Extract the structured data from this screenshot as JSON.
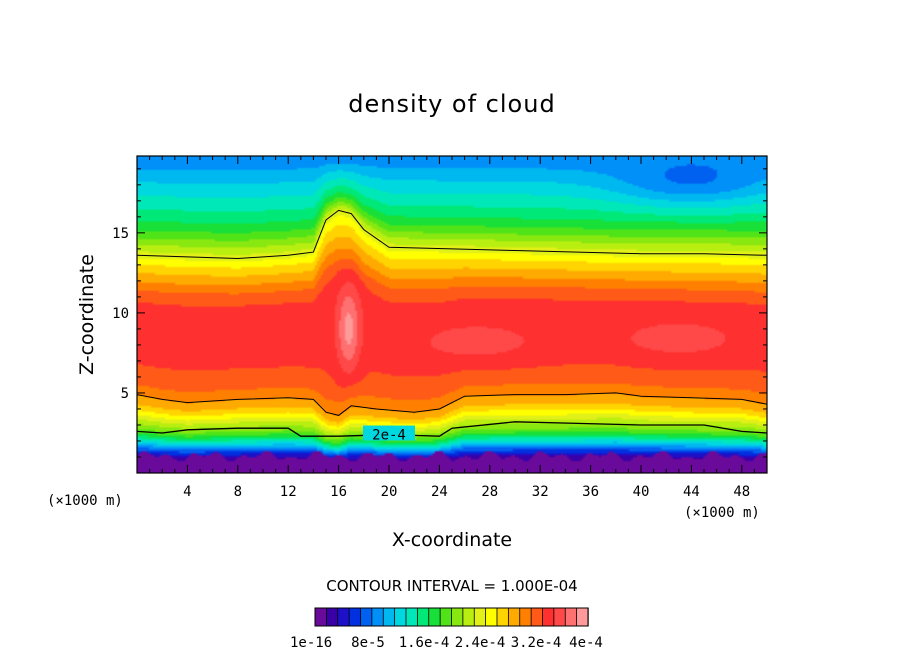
{
  "chart_data": {
    "type": "heatmap",
    "title": "density of cloud",
    "xlabel": "X-coordinate",
    "ylabel": "Z-coordinate",
    "x_unit_left": "(×1000 m)",
    "x_unit_right": "(×1000 m)",
    "xlim": [
      0,
      50
    ],
    "ylim": [
      0,
      19.8
    ],
    "x_ticks": [
      4,
      8,
      12,
      16,
      20,
      24,
      28,
      32,
      36,
      40,
      44,
      48
    ],
    "x_tick_labels": [
      "4",
      "8",
      "12",
      "16",
      "20",
      "24",
      "28",
      "32",
      "36",
      "40",
      "44",
      "48"
    ],
    "y_ticks": [
      5,
      10,
      15
    ],
    "y_tick_labels": [
      "5",
      "10",
      "15"
    ],
    "contour_interval_text": "CONTOUR INTERVAL = 1.000E-04",
    "contour_label": "2e-4",
    "contour_level": 0.0002,
    "colorbar": {
      "min": 1e-16,
      "max": 0.0004,
      "labels": [
        "1e-16",
        "8e-5",
        "1.6e-4",
        "2.4e-4",
        "3.2e-4",
        "4e-4"
      ],
      "colors": [
        "#6a0a9a",
        "#3a00a8",
        "#1e10c8",
        "#0030e0",
        "#0060f0",
        "#0090f8",
        "#00b8f0",
        "#00d8e0",
        "#00e8b8",
        "#00e878",
        "#18e038",
        "#50e418",
        "#88e810",
        "#b8ee10",
        "#e0f018",
        "#ffff00",
        "#ffd400",
        "#ffaa00",
        "#ff8000",
        "#ff5a18",
        "#ff3030",
        "#ff4848",
        "#ff7070",
        "#ff9a9a"
      ]
    },
    "z_profile": [
      {
        "z": 0.0,
        "value": 0.0
      },
      {
        "z": 0.5,
        "value": 1e-05
      },
      {
        "z": 1.0,
        "value": 3e-05
      },
      {
        "z": 1.5,
        "value": 8e-05
      },
      {
        "z": 2.0,
        "value": 0.00014
      },
      {
        "z": 2.5,
        "value": 0.00019
      },
      {
        "z": 3.0,
        "value": 0.00022
      },
      {
        "z": 3.5,
        "value": 0.00025
      },
      {
        "z": 4.0,
        "value": 0.00028
      },
      {
        "z": 5.0,
        "value": 0.00031
      },
      {
        "z": 6.0,
        "value": 0.00033
      },
      {
        "z": 8.0,
        "value": 0.00034
      },
      {
        "z": 10.0,
        "value": 0.00034
      },
      {
        "z": 11.0,
        "value": 0.00033
      },
      {
        "z": 12.0,
        "value": 0.0003
      },
      {
        "z": 13.0,
        "value": 0.00027
      },
      {
        "z": 14.0,
        "value": 0.00023
      },
      {
        "z": 15.0,
        "value": 0.00019
      },
      {
        "z": 16.0,
        "value": 0.00016
      },
      {
        "z": 17.0,
        "value": 0.00014
      },
      {
        "z": 18.0,
        "value": 0.00012
      },
      {
        "z": 19.0,
        "value": 0.0001
      },
      {
        "z": 19.8,
        "value": 9e-05
      }
    ],
    "contour_upper": [
      [
        0,
        13.6
      ],
      [
        4,
        13.5
      ],
      [
        8,
        13.4
      ],
      [
        12,
        13.6
      ],
      [
        14,
        13.8
      ],
      [
        15,
        15.8
      ],
      [
        16,
        16.4
      ],
      [
        17,
        16.2
      ],
      [
        18,
        15.2
      ],
      [
        20,
        14.1
      ],
      [
        25,
        14.0
      ],
      [
        30,
        13.9
      ],
      [
        35,
        13.8
      ],
      [
        40,
        13.7
      ],
      [
        45,
        13.7
      ],
      [
        50,
        13.6
      ]
    ],
    "contour_lower": [
      [
        0,
        4.9
      ],
      [
        2,
        4.6
      ],
      [
        4,
        4.4
      ],
      [
        6,
        4.5
      ],
      [
        8,
        4.6
      ],
      [
        12,
        4.7
      ],
      [
        14,
        4.6
      ],
      [
        15,
        3.8
      ],
      [
        16,
        3.6
      ],
      [
        17,
        4.2
      ],
      [
        19,
        4.0
      ],
      [
        22,
        3.8
      ],
      [
        24,
        4.0
      ],
      [
        26,
        4.8
      ],
      [
        30,
        4.9
      ],
      [
        34,
        4.9
      ],
      [
        38,
        5.0
      ],
      [
        40,
        4.8
      ],
      [
        44,
        4.7
      ],
      [
        48,
        4.6
      ],
      [
        50,
        4.3
      ]
    ],
    "contour_2e4": [
      [
        0,
        2.6
      ],
      [
        2,
        2.5
      ],
      [
        4,
        2.7
      ],
      [
        8,
        2.8
      ],
      [
        12,
        2.8
      ],
      [
        13,
        2.3
      ],
      [
        16,
        2.3
      ],
      [
        20,
        2.4
      ],
      [
        24,
        2.3
      ],
      [
        25,
        2.8
      ],
      [
        30,
        3.2
      ],
      [
        35,
        3.1
      ],
      [
        40,
        3.0
      ],
      [
        45,
        3.0
      ],
      [
        48,
        2.6
      ],
      [
        50,
        2.5
      ]
    ],
    "features": [
      {
        "name": "high-density core near x=17",
        "x": 16.8,
        "z": 9.0,
        "value": 0.00039
      },
      {
        "name": "high-density band near x=27",
        "x": 27.0,
        "z": 8.2,
        "value": 0.00036
      },
      {
        "name": "high-density band near x=43",
        "x": 43.0,
        "z": 8.4,
        "value": 0.00036
      },
      {
        "name": "low-density pocket near x=44",
        "x": 44.0,
        "z": 18.5,
        "value": 8e-05
      }
    ]
  }
}
